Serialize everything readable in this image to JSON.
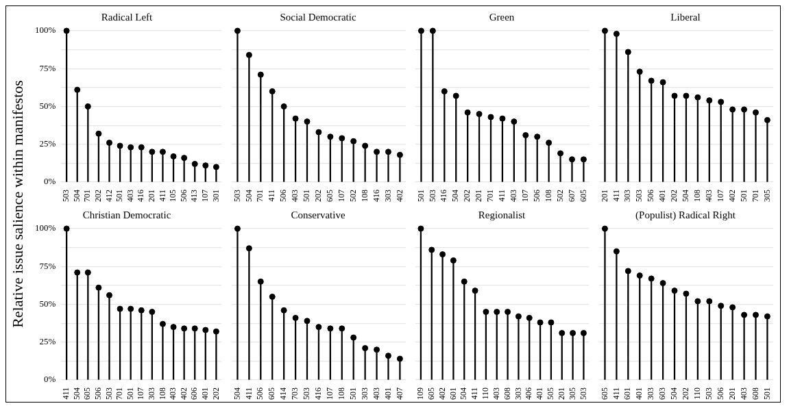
{
  "chart_data": [
    {
      "type": "lollipop",
      "title": "Radical Left",
      "ylabel": "Relative issue salience within manifestos",
      "categories": [
        "503",
        "504",
        "701",
        "202",
        "412",
        "501",
        "403",
        "416",
        "201",
        "411",
        "105",
        "506",
        "413",
        "107",
        "301"
      ],
      "values": [
        100,
        61,
        50,
        32,
        26,
        24,
        23,
        23,
        20,
        20,
        17,
        16,
        12,
        11,
        10
      ],
      "color": "#000000",
      "ylim": [
        0,
        100
      ],
      "yticks": [
        {
          "value": 0,
          "label": "0%"
        },
        {
          "value": 12.5,
          "label": null
        },
        {
          "value": 25,
          "label": "25%"
        },
        {
          "value": 37.5,
          "label": null
        },
        {
          "value": 50,
          "label": "50%"
        },
        {
          "value": 62.5,
          "label": null
        },
        {
          "value": 75,
          "label": "75%"
        },
        {
          "value": 87.5,
          "label": null
        },
        {
          "value": 100,
          "label": "100%"
        }
      ],
      "grid": "y",
      "marker": "circle"
    },
    {
      "type": "lollipop",
      "title": "Social Democratic",
      "categories": [
        "503",
        "504",
        "701",
        "411",
        "506",
        "403",
        "501",
        "202",
        "605",
        "107",
        "502",
        "108",
        "416",
        "303",
        "402"
      ],
      "values": [
        100,
        84,
        71,
        60,
        50,
        42,
        40,
        33,
        30,
        29,
        27,
        24,
        20,
        20,
        18
      ],
      "color": "#000000",
      "ylim": [
        0,
        100
      ],
      "yticks": [
        {
          "value": 0,
          "label": null
        },
        {
          "value": 12.5,
          "label": null
        },
        {
          "value": 25,
          "label": null
        },
        {
          "value": 37.5,
          "label": null
        },
        {
          "value": 50,
          "label": null
        },
        {
          "value": 62.5,
          "label": null
        },
        {
          "value": 75,
          "label": null
        },
        {
          "value": 87.5,
          "label": null
        },
        {
          "value": 100,
          "label": null
        }
      ],
      "grid": "y",
      "marker": "circle",
      "tick_labels": "x"
    },
    {
      "type": "lollipop",
      "title": "Green",
      "categories": [
        "501",
        "503",
        "416",
        "504",
        "202",
        "201",
        "701",
        "411",
        "403",
        "107",
        "506",
        "108",
        "502",
        "607",
        "605"
      ],
      "values": [
        100,
        100,
        60,
        57,
        46,
        45,
        43,
        42,
        40,
        31,
        30,
        26,
        19,
        15,
        15
      ],
      "color": "#000000",
      "ylim": [
        0,
        100
      ],
      "yticks": [
        {
          "value": 0,
          "label": null
        },
        {
          "value": 12.5,
          "label": null
        },
        {
          "value": 25,
          "label": null
        },
        {
          "value": 37.5,
          "label": null
        },
        {
          "value": 50,
          "label": null
        },
        {
          "value": 62.5,
          "label": null
        },
        {
          "value": 75,
          "label": null
        },
        {
          "value": 87.5,
          "label": null
        },
        {
          "value": 100,
          "label": null
        }
      ],
      "grid": "y",
      "marker": "circle",
      "tick_labels": "x"
    },
    {
      "type": "lollipop",
      "title": "Liberal",
      "categories": [
        "201",
        "411",
        "303",
        "503",
        "506",
        "401",
        "202",
        "504",
        "108",
        "403",
        "107",
        "402",
        "501",
        "701",
        "305"
      ],
      "values": [
        100,
        98,
        86,
        73,
        67,
        66,
        57,
        57,
        56,
        54,
        53,
        48,
        48,
        46,
        41
      ],
      "color": "#000000",
      "ylim": [
        0,
        100
      ],
      "yticks": [
        {
          "value": 0,
          "label": null
        },
        {
          "value": 12.5,
          "label": null
        },
        {
          "value": 25,
          "label": null
        },
        {
          "value": 37.5,
          "label": null
        },
        {
          "value": 50,
          "label": null
        },
        {
          "value": 62.5,
          "label": null
        },
        {
          "value": 75,
          "label": null
        },
        {
          "value": 87.5,
          "label": null
        },
        {
          "value": 100,
          "label": null
        }
      ],
      "grid": "y",
      "marker": "circle",
      "tick_labels": "x"
    },
    {
      "type": "lollipop",
      "title": "Christian Democratic",
      "categories": [
        "411",
        "504",
        "605",
        "506",
        "503",
        "701",
        "501",
        "107",
        "303",
        "108",
        "403",
        "402",
        "606",
        "401",
        "202"
      ],
      "values": [
        100,
        71,
        71,
        61,
        56,
        47,
        47,
        46,
        45,
        37,
        35,
        34,
        34,
        33,
        32
      ],
      "color": "#000000",
      "ylim": [
        0,
        100
      ],
      "yticks": [
        {
          "value": 0,
          "label": "0%"
        },
        {
          "value": 12.5,
          "label": null
        },
        {
          "value": 25,
          "label": "25%"
        },
        {
          "value": 37.5,
          "label": null
        },
        {
          "value": 50,
          "label": "50%"
        },
        {
          "value": 62.5,
          "label": null
        },
        {
          "value": 75,
          "label": "75%"
        },
        {
          "value": 87.5,
          "label": null
        },
        {
          "value": 100,
          "label": "100%"
        }
      ],
      "grid": "y",
      "marker": "circle"
    },
    {
      "type": "lollipop",
      "title": "Conservative",
      "categories": [
        "504",
        "411",
        "506",
        "605",
        "414",
        "703",
        "503",
        "416",
        "107",
        "108",
        "501",
        "303",
        "403",
        "401",
        "407"
      ],
      "values": [
        100,
        87,
        65,
        55,
        46,
        41,
        39,
        35,
        34,
        34,
        28,
        21,
        20,
        16,
        14
      ],
      "color": "#000000",
      "ylim": [
        0,
        100
      ],
      "yticks": [
        {
          "value": 0,
          "label": null
        },
        {
          "value": 12.5,
          "label": null
        },
        {
          "value": 25,
          "label": null
        },
        {
          "value": 37.5,
          "label": null
        },
        {
          "value": 50,
          "label": null
        },
        {
          "value": 62.5,
          "label": null
        },
        {
          "value": 75,
          "label": null
        },
        {
          "value": 87.5,
          "label": null
        },
        {
          "value": 100,
          "label": null
        }
      ],
      "grid": "y",
      "marker": "circle",
      "tick_labels": "x"
    },
    {
      "type": "lollipop",
      "title": "Regionalist",
      "categories": [
        "109",
        "605",
        "402",
        "601",
        "504",
        "411",
        "110",
        "403",
        "608",
        "303",
        "406",
        "401",
        "505",
        "201",
        "305",
        "503"
      ],
      "values": [
        100,
        86,
        83,
        79,
        65,
        59,
        45,
        45,
        45,
        42,
        41,
        38,
        38,
        31,
        31,
        31
      ],
      "color": "#000000",
      "ylim": [
        0,
        100
      ],
      "yticks": [
        {
          "value": 0,
          "label": null
        },
        {
          "value": 12.5,
          "label": null
        },
        {
          "value": 25,
          "label": null
        },
        {
          "value": 37.5,
          "label": null
        },
        {
          "value": 50,
          "label": null
        },
        {
          "value": 62.5,
          "label": null
        },
        {
          "value": 75,
          "label": null
        },
        {
          "value": 87.5,
          "label": null
        },
        {
          "value": 100,
          "label": null
        }
      ],
      "grid": "y",
      "marker": "circle",
      "tick_labels": "x"
    },
    {
      "type": "lollipop",
      "title": "(Populist) Radical Right",
      "categories": [
        "605",
        "411",
        "601",
        "401",
        "303",
        "603",
        "504",
        "202",
        "110",
        "503",
        "506",
        "201",
        "403",
        "608",
        "501"
      ],
      "values": [
        100,
        85,
        72,
        69,
        67,
        64,
        59,
        57,
        52,
        52,
        49,
        48,
        43,
        43,
        42
      ],
      "color": "#000000",
      "ylim": [
        0,
        100
      ],
      "yticks": [
        {
          "value": 0,
          "label": null
        },
        {
          "value": 12.5,
          "label": null
        },
        {
          "value": 25,
          "label": null
        },
        {
          "value": 37.5,
          "label": null
        },
        {
          "value": 50,
          "label": null
        },
        {
          "value": 62.5,
          "label": null
        },
        {
          "value": 75,
          "label": null
        },
        {
          "value": 87.5,
          "label": null
        },
        {
          "value": 100,
          "label": null
        }
      ],
      "grid": "y",
      "marker": "circle",
      "tick_labels": "x"
    }
  ]
}
